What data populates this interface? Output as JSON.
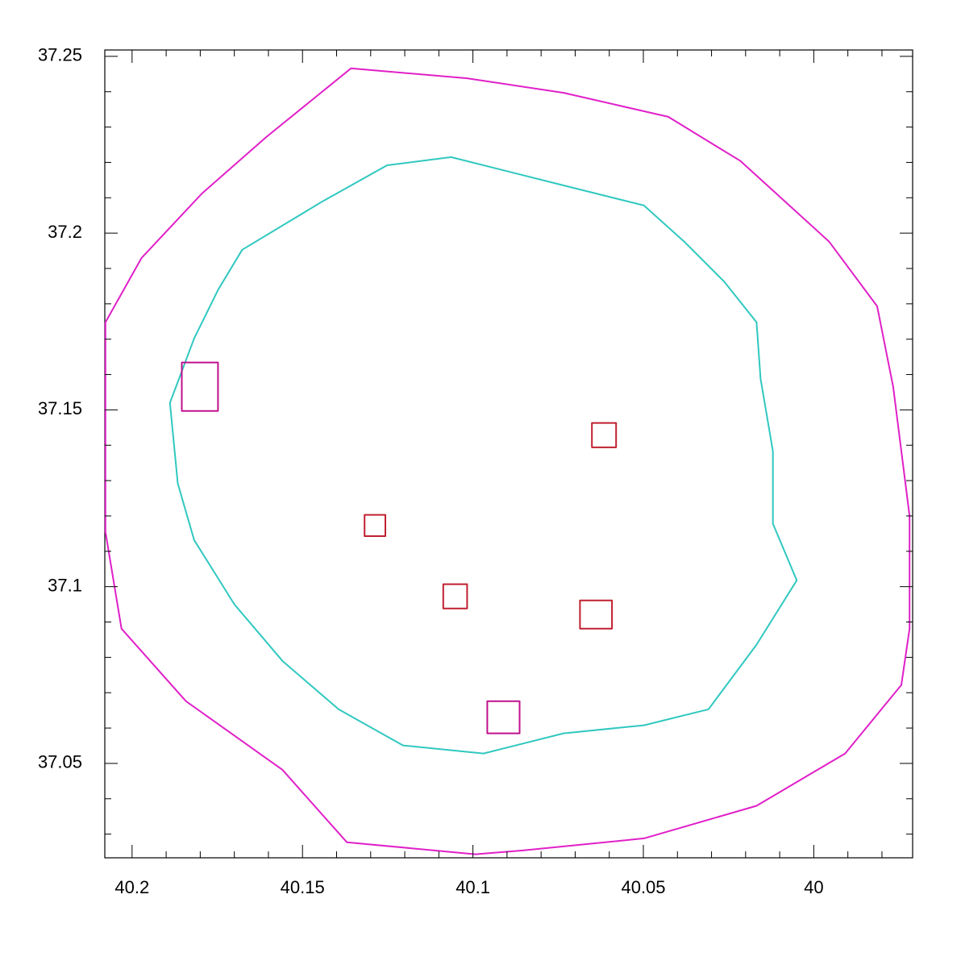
{
  "chart_data": {
    "type": "contour",
    "xlim": [
      40.208,
      39.971
    ],
    "ylim": [
      37.0233,
      37.2518
    ],
    "xticks": [
      40.2,
      40.15,
      40.1,
      40.05,
      40
    ],
    "yticks": [
      37.05,
      37.1,
      37.15,
      37.2,
      37.25
    ],
    "xminorticks": [
      40.19,
      40.18,
      40.17,
      40.16,
      40.14,
      40.13,
      40.12,
      40.11,
      40.09,
      40.08,
      40.07,
      40.06,
      40.04,
      40.03,
      40.02,
      40.01,
      39.99,
      39.98
    ],
    "yminorticks": [
      37.03,
      37.04,
      37.06,
      37.07,
      37.08,
      37.09,
      37.11,
      37.12,
      37.13,
      37.14,
      37.16,
      37.17,
      37.18,
      37.19,
      37.21,
      37.22,
      37.23,
      37.24
    ],
    "regions": [
      {
        "color": "#e020c8",
        "x": [
          40.1358,
          40.1017,
          40.0734,
          40.0427,
          40.0215,
          39.9955,
          39.9814,
          39.9767,
          39.9719,
          39.9719,
          39.9743,
          39.9908,
          40.0168,
          40.0498,
          40.0851,
          40.0993,
          40.137,
          40.1559,
          40.1842,
          40.2031,
          40.2078,
          40.2078,
          40.1972,
          40.1795,
          40.1606
        ],
        "y": [
          37.2466,
          37.2438,
          37.2397,
          37.2329,
          37.2204,
          37.1976,
          37.1793,
          37.1565,
          37.12,
          37.0881,
          37.0722,
          37.0528,
          37.038,
          37.0288,
          37.0254,
          37.0243,
          37.0277,
          37.0482,
          37.0676,
          37.0881,
          37.1155,
          37.1748,
          37.193,
          37.2112,
          37.2272
        ]
      },
      {
        "color": "#30c8c0",
        "x": [
          40.1677,
          40.1441,
          40.1252,
          40.1064,
          40.0734,
          40.0498,
          40.038,
          40.0262,
          40.0168,
          40.0156,
          40.012,
          40.012,
          40.005,
          40.0168,
          40.0309,
          40.0498,
          40.0734,
          40.0969,
          40.1205,
          40.1394,
          40.1559,
          40.17,
          40.1818,
          40.1866,
          40.1889,
          40.1818,
          40.1748
        ],
        "y": [
          37.1953,
          37.209,
          37.2192,
          37.2215,
          37.2135,
          37.2078,
          37.1976,
          37.1862,
          37.1748,
          37.1588,
          37.1383,
          37.1178,
          37.1018,
          37.0836,
          37.0653,
          37.0608,
          37.0585,
          37.0528,
          37.0551,
          37.0653,
          37.079,
          37.095,
          37.1132,
          37.1292,
          37.152,
          37.1702,
          37.1839
        ]
      },
      {
        "color": "#c02030",
        "x": [
          40.0651,
          40.058,
          40.058,
          40.0651
        ],
        "y": [
          37.1463,
          37.1463,
          37.1394,
          37.1394
        ]
      },
      {
        "color": "#c02030",
        "x": [
          40.1318,
          40.1257,
          40.1257,
          40.1318
        ],
        "y": [
          37.1203,
          37.1203,
          37.1143,
          37.1143
        ]
      },
      {
        "color": "#c02030",
        "x": [
          40.1087,
          40.1017,
          40.1017,
          40.1087
        ],
        "y": [
          37.1007,
          37.1007,
          37.0938,
          37.0938
        ]
      },
      {
        "color": "#c0108c",
        "x": [
          40.0958,
          40.0863,
          40.0863,
          40.0958
        ],
        "y": [
          37.0676,
          37.0676,
          37.0585,
          37.0585
        ]
      },
      {
        "color": "#c02030",
        "x": [
          40.0686,
          40.0592,
          40.0592,
          40.0686
        ],
        "y": [
          37.0961,
          37.0961,
          37.0881,
          37.0881
        ]
      },
      {
        "color": "#c0108c",
        "x": [
          40.1854,
          40.1748,
          40.1748,
          40.1854
        ],
        "y": [
          37.1634,
          37.1634,
          37.1497,
          37.1497
        ]
      }
    ]
  }
}
